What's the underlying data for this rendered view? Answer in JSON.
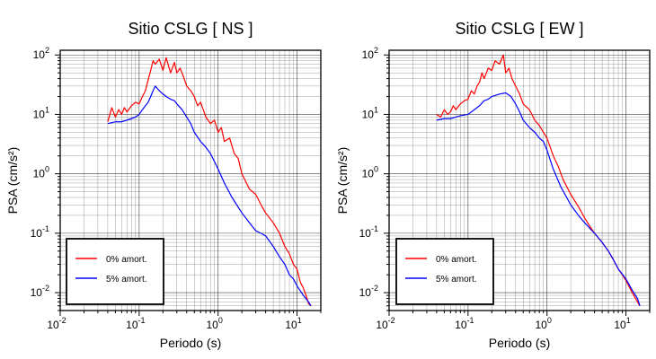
{
  "chart_data": [
    {
      "type": "line",
      "title": "Sitio CSLG [ NS ]",
      "xlabel": "Periodo (s)",
      "ylabel": "PSA (cm/s²)",
      "xscale": "log",
      "yscale": "log",
      "xlim": [
        0.01,
        20
      ],
      "ylim": [
        0.005,
        120
      ],
      "grid": true,
      "legend_position": "bottom-left",
      "xticks": [
        {
          "label": "10",
          "exp": "-2"
        },
        {
          "label": "10",
          "exp": "-1"
        },
        {
          "label": "10",
          "exp": "0"
        },
        {
          "label": "10",
          "exp": "1"
        }
      ],
      "yticks": [
        {
          "label": "10",
          "exp": "-2"
        },
        {
          "label": "10",
          "exp": "-1"
        },
        {
          "label": "10",
          "exp": "0"
        },
        {
          "label": "10",
          "exp": "1"
        },
        {
          "label": "10",
          "exp": "2"
        }
      ],
      "series": [
        {
          "name": "0% amort.",
          "color": "#ff0000",
          "x": [
            0.04,
            0.045,
            0.05,
            0.055,
            0.06,
            0.065,
            0.07,
            0.08,
            0.09,
            0.1,
            0.11,
            0.12,
            0.13,
            0.14,
            0.15,
            0.16,
            0.18,
            0.2,
            0.22,
            0.25,
            0.28,
            0.3,
            0.33,
            0.36,
            0.4,
            0.45,
            0.5,
            0.55,
            0.6,
            0.7,
            0.8,
            0.9,
            1.0,
            1.1,
            1.2,
            1.4,
            1.6,
            1.8,
            2.0,
            2.5,
            3.0,
            3.5,
            4.0,
            5.0,
            6.0,
            7.0,
            8.0,
            9.0,
            10.0,
            11.0,
            12.0,
            13.0,
            14.0,
            15.0
          ],
          "y": [
            7.5,
            13,
            9,
            12,
            10,
            13,
            11,
            14,
            16,
            15,
            20,
            25,
            38,
            55,
            80,
            70,
            85,
            55,
            90,
            50,
            75,
            50,
            60,
            45,
            30,
            25,
            20,
            14,
            16,
            9,
            7,
            8,
            5,
            6,
            3.5,
            4,
            2.2,
            1.8,
            1.0,
            0.55,
            0.45,
            0.3,
            0.22,
            0.15,
            0.1,
            0.06,
            0.045,
            0.03,
            0.025,
            0.015,
            0.012,
            0.009,
            0.0065,
            0.006
          ]
        },
        {
          "name": "5% amort.",
          "color": "#0000ff",
          "x": [
            0.04,
            0.05,
            0.06,
            0.07,
            0.08,
            0.09,
            0.1,
            0.11,
            0.12,
            0.13,
            0.14,
            0.15,
            0.16,
            0.18,
            0.2,
            0.22,
            0.25,
            0.28,
            0.3,
            0.35,
            0.4,
            0.45,
            0.5,
            0.6,
            0.7,
            0.8,
            0.9,
            1.0,
            1.2,
            1.5,
            2.0,
            2.5,
            3.0,
            3.5,
            4.0,
            5.0,
            6.0,
            7.0,
            8.0,
            9.0,
            10.0,
            12.0,
            14.0,
            15.0
          ],
          "y": [
            7,
            7.5,
            7.5,
            8,
            8.5,
            9,
            10,
            12,
            14,
            16,
            20,
            25,
            30,
            25,
            22,
            20,
            18,
            17,
            15,
            12,
            9,
            7,
            5,
            3.5,
            2.8,
            2.2,
            1.6,
            1.2,
            0.7,
            0.4,
            0.22,
            0.15,
            0.11,
            0.1,
            0.09,
            0.06,
            0.04,
            0.03,
            0.02,
            0.017,
            0.013,
            0.009,
            0.007,
            0.006
          ]
        }
      ]
    },
    {
      "type": "line",
      "title": "Sitio CSLG [ EW ]",
      "xlabel": "Periodo (s)",
      "ylabel": "PSA (cm/s²)",
      "xscale": "log",
      "yscale": "log",
      "xlim": [
        0.01,
        20
      ],
      "ylim": [
        0.005,
        120
      ],
      "grid": true,
      "legend_position": "bottom-left",
      "xticks": [
        {
          "label": "10",
          "exp": "-2"
        },
        {
          "label": "10",
          "exp": "-1"
        },
        {
          "label": "10",
          "exp": "0"
        },
        {
          "label": "10",
          "exp": "1"
        }
      ],
      "yticks": [
        {
          "label": "10",
          "exp": "-2"
        },
        {
          "label": "10",
          "exp": "-1"
        },
        {
          "label": "10",
          "exp": "0"
        },
        {
          "label": "10",
          "exp": "1"
        },
        {
          "label": "10",
          "exp": "2"
        }
      ],
      "series": [
        {
          "name": "0% amort.",
          "color": "#ff0000",
          "x": [
            0.04,
            0.045,
            0.05,
            0.055,
            0.06,
            0.065,
            0.07,
            0.08,
            0.09,
            0.1,
            0.11,
            0.12,
            0.13,
            0.14,
            0.15,
            0.16,
            0.18,
            0.2,
            0.22,
            0.25,
            0.28,
            0.3,
            0.33,
            0.36,
            0.4,
            0.45,
            0.5,
            0.6,
            0.7,
            0.8,
            0.9,
            1.0,
            1.2,
            1.4,
            1.6,
            2.0,
            2.5,
            3.0,
            3.5,
            4.0,
            5.0,
            6.0,
            7.0,
            8.0,
            9.0,
            10.0,
            12.0,
            14.0,
            15.0
          ],
          "y": [
            10,
            9,
            12,
            10,
            11,
            14,
            12,
            15,
            17,
            18,
            25,
            22,
            30,
            35,
            50,
            40,
            60,
            55,
            80,
            70,
            100,
            50,
            60,
            40,
            30,
            22,
            15,
            12,
            8,
            6.5,
            5,
            4,
            2,
            1.3,
            0.8,
            0.45,
            0.28,
            0.18,
            0.13,
            0.1,
            0.07,
            0.05,
            0.035,
            0.025,
            0.02,
            0.016,
            0.01,
            0.007,
            0.006
          ]
        },
        {
          "name": "5% amort.",
          "color": "#0000ff",
          "x": [
            0.04,
            0.05,
            0.06,
            0.07,
            0.08,
            0.1,
            0.12,
            0.14,
            0.16,
            0.18,
            0.2,
            0.25,
            0.3,
            0.35,
            0.4,
            0.45,
            0.5,
            0.6,
            0.7,
            0.8,
            0.9,
            1.0,
            1.2,
            1.5,
            2.0,
            2.5,
            3.0,
            3.5,
            4.0,
            5.0,
            6.0,
            7.0,
            8.0,
            10.0,
            12.0,
            14.0,
            15.0
          ],
          "y": [
            8,
            8.5,
            8.5,
            9,
            9.5,
            10,
            12,
            14,
            17,
            18,
            20,
            22,
            23,
            20,
            15,
            11,
            8,
            6,
            5,
            4,
            3.5,
            2.5,
            1.2,
            0.6,
            0.3,
            0.2,
            0.15,
            0.12,
            0.1,
            0.07,
            0.05,
            0.035,
            0.025,
            0.017,
            0.011,
            0.008,
            0.006
          ]
        }
      ]
    }
  ]
}
